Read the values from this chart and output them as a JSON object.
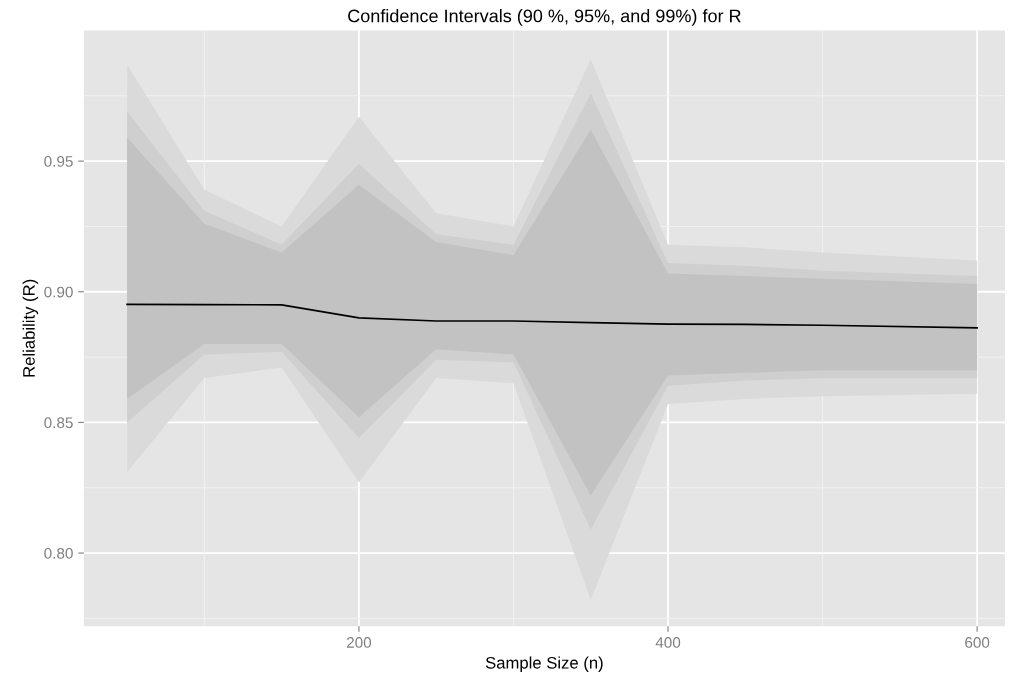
{
  "chart_data": {
    "type": "line",
    "title": "Confidence Intervals (90 %, 95%, and 99%) for R",
    "xlabel": "Sample Size (n)",
    "ylabel": "Reliability (R)",
    "x": [
      50,
      100,
      150,
      200,
      250,
      300,
      350,
      400,
      450,
      500,
      600
    ],
    "series": [
      {
        "type": "line",
        "color": "#dadada",
        "values": [
          null,
          null,
          null,
          null,
          null,
          null,
          null,
          null,
          null,
          null,
          null
        ],
        "lower": [
          0.831,
          0.867,
          0.871,
          0.827,
          0.867,
          0.865,
          0.782,
          0.857,
          0.859,
          0.86,
          0.861
        ],
        "upper": [
          0.987,
          0.939,
          0.925,
          0.967,
          0.93,
          0.925,
          0.989,
          0.918,
          0.917,
          0.915,
          0.912
        ]
      },
      {
        "type": "line",
        "color": "#cfcfcf",
        "values": [
          null,
          null,
          null,
          null,
          null,
          null,
          null,
          null,
          null,
          null,
          null
        ],
        "lower": [
          0.85,
          0.876,
          0.877,
          0.844,
          0.874,
          0.873,
          0.809,
          0.864,
          0.866,
          0.867,
          0.867
        ],
        "upper": [
          0.969,
          0.931,
          0.918,
          0.949,
          0.922,
          0.918,
          0.976,
          0.911,
          0.91,
          0.908,
          0.906
        ]
      },
      {
        "type": "line",
        "color": "#c2c2c2",
        "values": [
          null,
          null,
          null,
          null,
          null,
          null,
          null,
          null,
          null,
          null,
          null
        ],
        "lower": [
          0.859,
          0.88,
          0.88,
          0.852,
          0.878,
          0.876,
          0.822,
          0.868,
          0.869,
          0.87,
          0.87
        ],
        "upper": [
          0.959,
          0.926,
          0.915,
          0.941,
          0.919,
          0.914,
          0.962,
          0.907,
          0.906,
          0.905,
          0.903
        ]
      },
      {
        "color": "#000000",
        "values": [
          0.8952,
          0.8951,
          0.895,
          0.89,
          0.8888,
          0.8888,
          0.8882,
          0.8876,
          0.8875,
          0.8872,
          0.8862
        ]
      }
    ],
    "xlim": [
      22,
      618
    ],
    "ylim": [
      0.772,
      1.0
    ],
    "xticks": [
      200,
      400,
      600
    ],
    "yticks": [
      {
        "value": 0.8,
        "label": "0.80"
      },
      {
        "value": 0.85,
        "label": "0.85"
      },
      {
        "value": 0.9,
        "label": "0.90"
      },
      {
        "value": 0.95,
        "label": "0.95"
      }
    ],
    "grid": true
  }
}
